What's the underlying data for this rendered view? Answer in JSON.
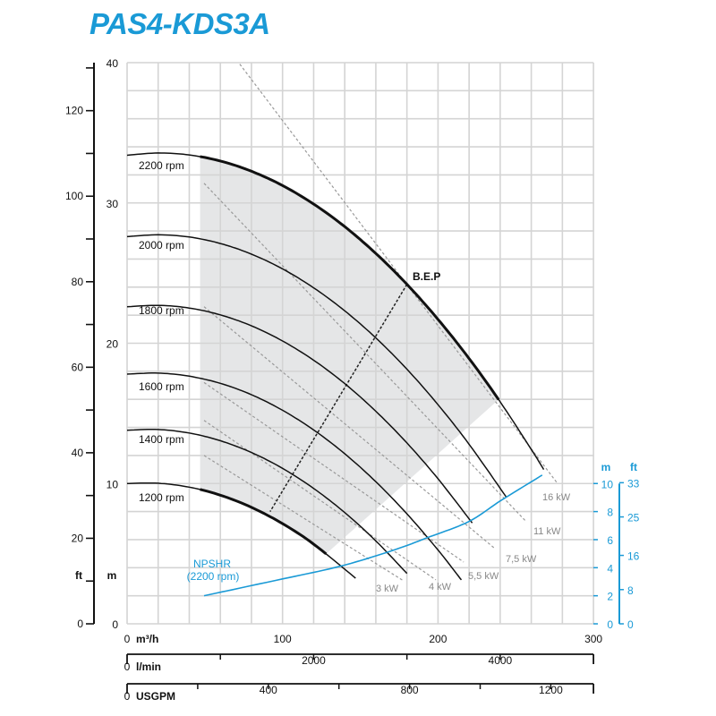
{
  "title": "PAS4-KDS3A",
  "colors": {
    "accent": "#1a9ad6",
    "curve": "#111111",
    "power_line": "#999999",
    "operating_area": "#e5e6e7",
    "grid": "#d4d4d4"
  },
  "chart_data": {
    "type": "line",
    "title": "PAS4-KDS3A",
    "x_axes": [
      {
        "unit": "m³/h",
        "range": [
          0,
          300
        ],
        "ticks": [
          0,
          100,
          200,
          300
        ]
      },
      {
        "unit": "l/min",
        "range": [
          0,
          5000
        ],
        "ticks": [
          0,
          2000,
          4000
        ],
        "minor_ticks": [
          1000,
          3000,
          5000
        ]
      },
      {
        "unit": "USGPM",
        "range": [
          0,
          1320
        ],
        "ticks": [
          0,
          400,
          800,
          1200
        ],
        "minor_ticks": [
          200,
          600,
          1000
        ]
      }
    ],
    "y_axes": {
      "head_ft": {
        "unit": "ft",
        "ticks": [
          0,
          20,
          40,
          60,
          80,
          100,
          120
        ]
      },
      "head_m": {
        "unit": "m",
        "range": [
          0,
          40
        ],
        "ticks": [
          0,
          10,
          20,
          30,
          40
        ]
      },
      "npsh_m": {
        "unit": "m",
        "range": [
          0,
          10
        ],
        "ticks": [
          0,
          2,
          4,
          6,
          8,
          10
        ]
      },
      "npsh_ft": {
        "unit": "ft",
        "ticks": [
          0,
          8,
          16,
          25,
          33
        ]
      }
    },
    "grid": true,
    "series": [
      {
        "name": "2200 rpm",
        "points": [
          [
            0,
            33.4
          ],
          [
            20,
            33.56
          ],
          [
            40,
            33.42
          ],
          [
            60,
            32.99
          ],
          [
            80,
            32.26
          ],
          [
            100,
            31.24
          ],
          [
            120,
            29.92
          ],
          [
            140,
            28.31
          ],
          [
            160,
            26.4
          ],
          [
            180,
            24.2
          ],
          [
            200,
            21.7
          ],
          [
            220,
            18.91
          ],
          [
            240,
            15.82
          ],
          [
            260,
            12.43
          ],
          [
            268,
            11.0
          ]
        ],
        "bold_range": [
          47,
          239
        ]
      },
      {
        "name": "2000 rpm",
        "points": [
          [
            0,
            27.6
          ],
          [
            20,
            27.73
          ],
          [
            40,
            27.57
          ],
          [
            60,
            27.11
          ],
          [
            80,
            26.35
          ],
          [
            100,
            25.3
          ],
          [
            120,
            23.95
          ],
          [
            140,
            22.31
          ],
          [
            160,
            20.38
          ],
          [
            180,
            18.15
          ],
          [
            200,
            15.62
          ],
          [
            220,
            12.8
          ],
          [
            244,
            9.02
          ]
        ]
      },
      {
        "name": "1800 rpm",
        "points": [
          [
            0,
            22.6
          ],
          [
            20,
            22.7
          ],
          [
            40,
            22.51
          ],
          [
            60,
            22.02
          ],
          [
            80,
            21.24
          ],
          [
            100,
            20.16
          ],
          [
            120,
            18.79
          ],
          [
            140,
            17.12
          ],
          [
            160,
            15.15
          ],
          [
            180,
            12.89
          ],
          [
            200,
            10.34
          ],
          [
            222,
            7.19
          ]
        ]
      },
      {
        "name": "1600 rpm",
        "points": [
          [
            0,
            17.8
          ],
          [
            20,
            17.87
          ],
          [
            40,
            17.65
          ],
          [
            60,
            17.14
          ],
          [
            80,
            16.33
          ],
          [
            100,
            15.22
          ],
          [
            120,
            13.82
          ],
          [
            140,
            12.12
          ],
          [
            160,
            10.13
          ],
          [
            180,
            7.84
          ],
          [
            200,
            5.26
          ],
          [
            215,
            3.13
          ]
        ]
      },
      {
        "name": "1400 rpm",
        "points": [
          [
            0,
            13.8
          ],
          [
            20,
            13.85
          ],
          [
            40,
            13.6
          ],
          [
            60,
            13.05
          ],
          [
            80,
            12.21
          ],
          [
            100,
            11.08
          ],
          [
            120,
            9.65
          ],
          [
            140,
            7.93
          ],
          [
            160,
            5.91
          ],
          [
            180,
            3.59
          ]
        ]
      },
      {
        "name": "1200 rpm",
        "points": [
          [
            0,
            10.0
          ],
          [
            20,
            10.02
          ],
          [
            40,
            9.74
          ],
          [
            60,
            9.17
          ],
          [
            80,
            8.3
          ],
          [
            100,
            7.14
          ],
          [
            120,
            5.68
          ],
          [
            147,
            3.25
          ]
        ],
        "bold_range": [
          47,
          128
        ]
      }
    ],
    "power_lines": [
      {
        "name": "16 kW",
        "points": [
          [
            72.5,
            39.9
          ],
          [
            276.9,
            10.0
          ]
        ]
      },
      {
        "name": "11 kW",
        "points": [
          [
            49.5,
            31.4
          ],
          [
            256.8,
            7.27
          ]
        ]
      },
      {
        "name": "7,5 kW",
        "points": [
          [
            49.5,
            22.6
          ],
          [
            236.7,
            5.36
          ]
        ]
      },
      {
        "name": "5,5 kW",
        "points": [
          [
            49.5,
            17.2
          ],
          [
            216.5,
            4.4
          ]
        ]
      },
      {
        "name": "4 kW",
        "points": [
          [
            49.5,
            14.5
          ],
          [
            198.6,
            3.13
          ]
        ]
      },
      {
        "name": "3 kW",
        "points": [
          [
            49.5,
            12.0
          ],
          [
            177.3,
            3.1
          ]
        ]
      }
    ],
    "bep": {
      "label": "B.E.P",
      "points": [
        [
          180,
          24.2
        ],
        [
          92,
          8.0
        ]
      ]
    },
    "npshr": {
      "label": "NPSHR",
      "sublabel": "(2200 rpm)",
      "points": [
        [
          49.5,
          2.0
        ],
        [
          100,
          3.2
        ],
        [
          137,
          4.1
        ],
        [
          170,
          5.2
        ],
        [
          194.6,
          6.2
        ],
        [
          220,
          7.3
        ],
        [
          240.6,
          8.8
        ],
        [
          267,
          10.6
        ]
      ]
    },
    "operating_area": {
      "q_min": 47,
      "q_max_2200": 239,
      "q_max_1200": 128
    }
  }
}
